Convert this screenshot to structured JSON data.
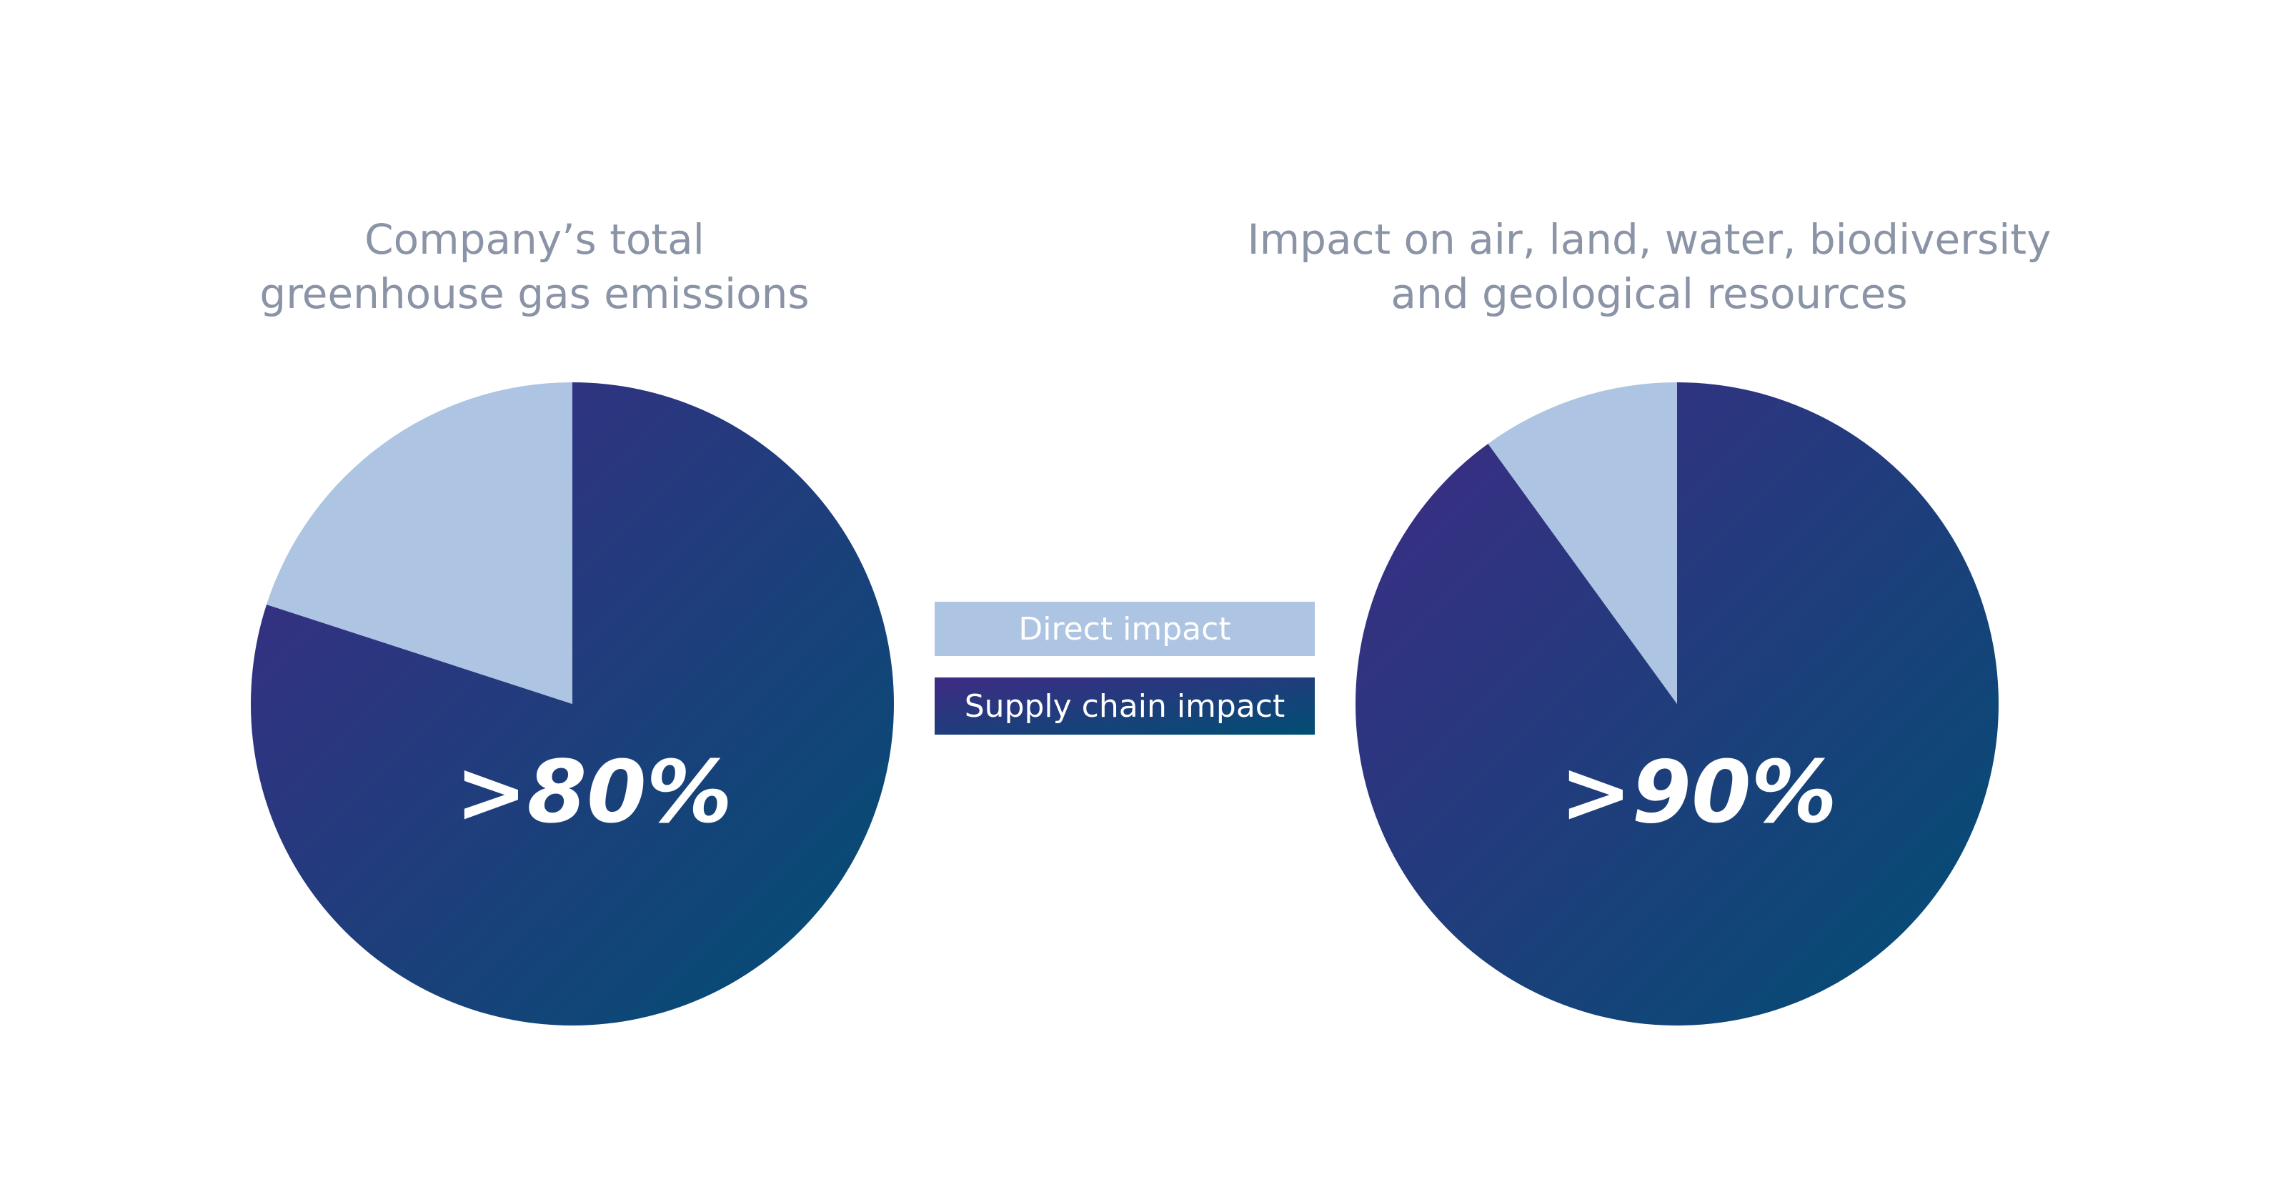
{
  "chart_data": [
    {
      "type": "pie",
      "title": [
        "Company’s total",
        "greenhouse gas emissions"
      ],
      "values": [
        20,
        80
      ],
      "value_labels": [
        null,
        ">80%"
      ]
    },
    {
      "type": "pie",
      "title": [
        "Impact on air, land, water, biodiversity",
        "and geological resources"
      ],
      "values": [
        10,
        90
      ],
      "value_labels": [
        null,
        ">90%"
      ]
    }
  ],
  "legend": {
    "position": "center",
    "items": [
      {
        "name": "Direct impact",
        "color": "#adc4e2"
      },
      {
        "name": "Supply chain impact",
        "color": [
          "#3f2b85",
          "#004f73"
        ]
      }
    ]
  }
}
